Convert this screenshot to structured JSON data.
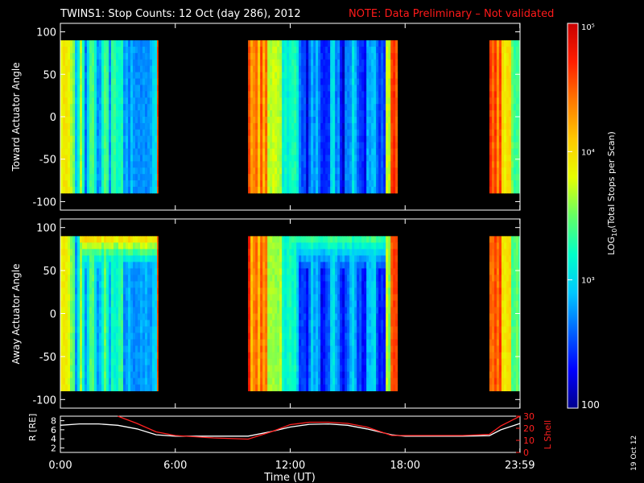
{
  "header": {
    "title": "TWINS1: Stop Counts: 12 Oct (day 286), 2012",
    "note": "NOTE: Data Preliminary – Not validated"
  },
  "footer": {
    "date_stamp": "19 Oct 12"
  },
  "colors": {
    "background": "#000000",
    "foreground": "#ffffff",
    "note": "#ff1a1a",
    "lshell": "#ff2020"
  },
  "chart_data": [
    {
      "type": "heatmap",
      "ylabel": "Toward Actuator Angle",
      "ylim": [
        -110,
        110
      ],
      "yticks": [
        100,
        50,
        0,
        -50,
        -100
      ],
      "xlim": [
        0,
        24
      ],
      "xticks": [
        "0:00",
        "6:00",
        "12:00",
        "18:00",
        "23:59"
      ],
      "data_angle_range": [
        -90,
        90
      ],
      "data_segments_hours": [
        [
          0.0,
          5.1
        ],
        [
          9.8,
          17.6
        ],
        [
          22.4,
          24.0
        ]
      ]
    },
    {
      "type": "heatmap",
      "ylabel": "Away Actuator Angle",
      "ylim": [
        -110,
        110
      ],
      "yticks": [
        100,
        50,
        0,
        -50,
        -100
      ],
      "xlim": [
        0,
        24
      ],
      "xticks": [
        "0:00",
        "6:00",
        "12:00",
        "18:00",
        "23:59"
      ],
      "data_angle_range": [
        -90,
        90
      ],
      "data_segments_hours": [
        [
          0.0,
          5.1
        ],
        [
          9.8,
          17.6
        ],
        [
          22.4,
          24.0
        ]
      ]
    },
    {
      "type": "line",
      "xlabel": "Time (UT)",
      "xticks": [
        "0:00",
        "6:00",
        "12:00",
        "18:00",
        "23:59"
      ],
      "xlim": [
        0,
        24
      ],
      "ylabel_left": "R [RE]",
      "ylabel_left_sub": "E",
      "ylim_left": [
        1,
        9
      ],
      "yticks_left": [
        8,
        6,
        4,
        2
      ],
      "ylabel_right": "L Shell",
      "ylim_right": [
        0,
        30
      ],
      "yticks_right": [
        30,
        20,
        10,
        0
      ],
      "series": [
        {
          "name": "R",
          "axis": "left",
          "color": "#ffffff",
          "x": [
            0,
            1,
            2,
            3,
            4,
            5,
            6,
            7,
            8,
            9,
            9.8,
            11,
            12,
            13,
            14,
            15,
            16,
            17.3,
            18,
            19,
            20,
            21,
            22.4,
            23,
            24
          ],
          "y": [
            7.0,
            7.3,
            7.3,
            7.0,
            6.2,
            4.9,
            4.6,
            4.6,
            4.6,
            4.6,
            4.6,
            5.6,
            6.6,
            7.2,
            7.3,
            7.0,
            6.2,
            4.9,
            4.6,
            4.6,
            4.6,
            4.6,
            4.7,
            6.0,
            7.4
          ]
        },
        {
          "name": "L Shell",
          "axis": "right",
          "color": "#ff2020",
          "x": [
            3.0,
            4.0,
            5.0,
            6.0,
            7.0,
            8.0,
            9.8,
            11.0,
            12.0,
            13.0,
            14.0,
            15.0,
            16.0,
            17.3,
            18.0,
            19.0,
            20.0,
            21.0,
            22.4,
            23.0,
            24.0
          ],
          "y": [
            30,
            24,
            17,
            14,
            13,
            12,
            11,
            17,
            23,
            25,
            25,
            24,
            21,
            14,
            14,
            14,
            14,
            14,
            15,
            22,
            31
          ]
        }
      ]
    }
  ],
  "colorbar": {
    "label": "LOG10(Total Stops per Scan)",
    "label_prefix": "LOG",
    "label_sub": "10",
    "label_suffix": "(Total Stops per Scan)",
    "tick_labels": [
      "10⁵",
      "10⁴",
      "10³",
      "100"
    ],
    "tick_values": [
      100000,
      10000,
      1000,
      100
    ],
    "range": [
      100,
      100000
    ],
    "scale": "log",
    "colormap": [
      "#00008c",
      "#0000ff",
      "#0064ff",
      "#00c8ff",
      "#00ffc8",
      "#64ff64",
      "#e6ff00",
      "#ffc800",
      "#ff7800",
      "#ff1e00",
      "#c80000"
    ]
  }
}
